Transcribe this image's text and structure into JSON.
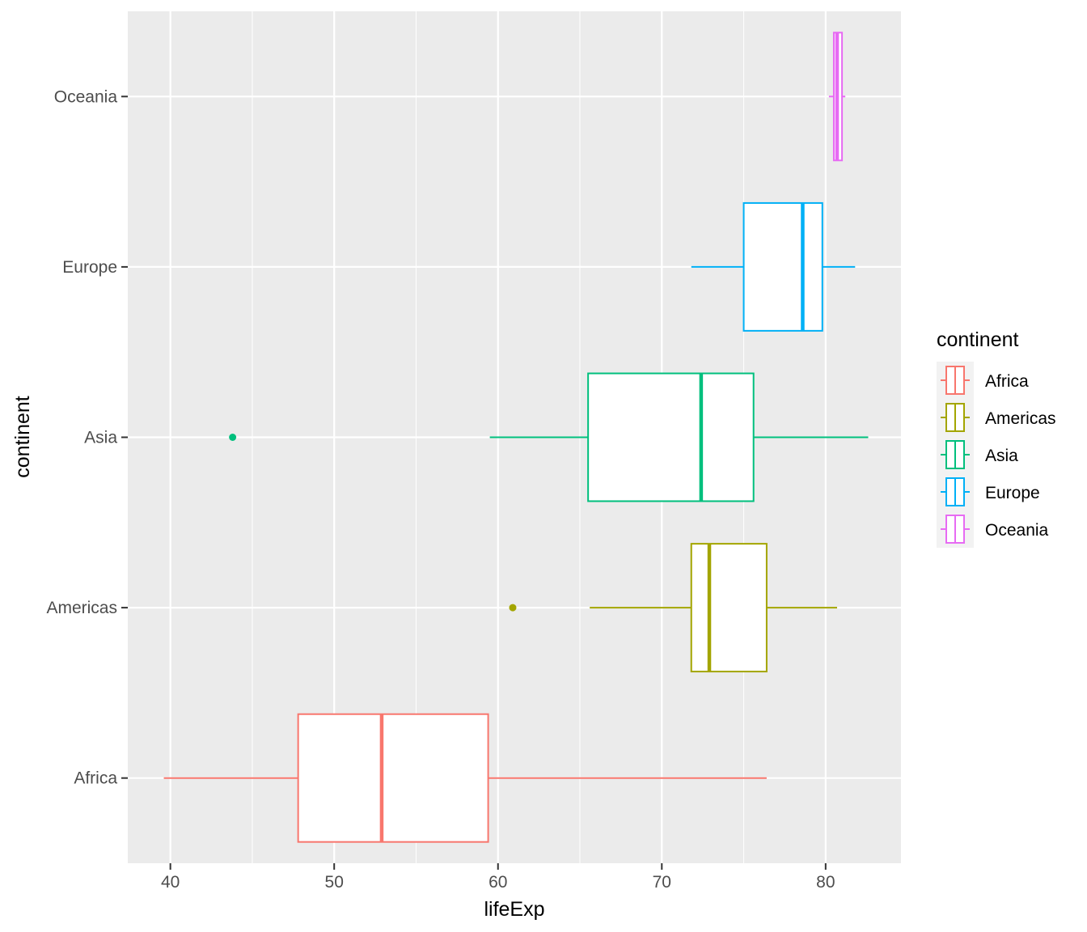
{
  "chart_data": {
    "type": "boxplot",
    "orientation": "horizontal",
    "xlabel": "lifeExp",
    "ylabel": "continent",
    "xlim": [
      37.4,
      84.6
    ],
    "xticks": [
      40,
      50,
      60,
      70,
      80
    ],
    "xtick_labels": [
      "40",
      "50",
      "60",
      "70",
      "80"
    ],
    "grid": true,
    "legend": {
      "title": "continent",
      "position": "right"
    },
    "series": [
      {
        "name": "Africa",
        "color": "#F8766D",
        "whisker_low": 39.6,
        "q1": 47.8,
        "median": 52.9,
        "q3": 59.4,
        "whisker_high": 76.4,
        "outliers": []
      },
      {
        "name": "Americas",
        "color": "#A3A500",
        "whisker_low": 65.6,
        "q1": 71.8,
        "median": 72.9,
        "q3": 76.4,
        "whisker_high": 80.7,
        "outliers": [
          60.9
        ]
      },
      {
        "name": "Asia",
        "color": "#00BF7D",
        "whisker_low": 59.5,
        "q1": 65.5,
        "median": 72.4,
        "q3": 75.6,
        "whisker_high": 82.6,
        "outliers": [
          43.8
        ]
      },
      {
        "name": "Europe",
        "color": "#00B0F6",
        "whisker_low": 71.8,
        "q1": 75.0,
        "median": 78.6,
        "q3": 79.8,
        "whisker_high": 81.8,
        "outliers": []
      },
      {
        "name": "Oceania",
        "color": "#E76BF3",
        "whisker_low": 80.2,
        "q1": 80.5,
        "median": 80.7,
        "q3": 81.0,
        "whisker_high": 81.2,
        "outliers": []
      }
    ]
  }
}
